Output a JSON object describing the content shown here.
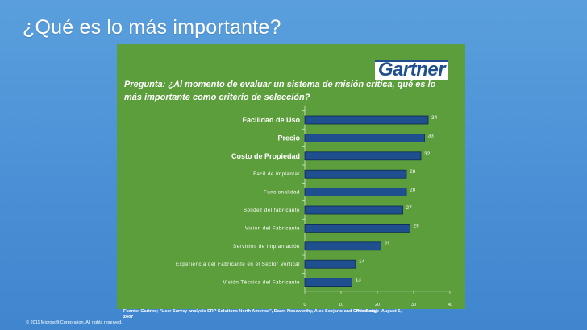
{
  "slide": {
    "title": "¿Qué es lo más importante?",
    "logo_text": "Gartner",
    "question": "Pregunta: ¿Al momento de evaluar un sistema de misión crítica,  qué es lo más importante como criterio de selección?",
    "source": "Fuente: Gartner; \"User Survey analysis ERP Solutions North America\", Dawn Noseworthy, Alex Soejarto and Chris Pang – August 6, 2007",
    "footer": "© 2011 Microsoft Corporation. All rights reserved."
  },
  "colors": {
    "background": "#4a90d6",
    "panel": "#5c9d3c",
    "bar": "#1f4f8e",
    "bar_edge": "#0d2a52"
  },
  "chart_data": {
    "type": "bar",
    "orientation": "horizontal",
    "categories": [
      "Facilidad de Uso",
      "Precio",
      "Costo de Propiedad",
      "Facil de implantar",
      "Funcionalidad",
      "Solidez del fabricante",
      "Visión del Fabricante",
      "Servicios de Implantación",
      "Experiencia  del Fabricante en el Sector  Vertical",
      "Visión Técnica del Fabricante"
    ],
    "category_bold": [
      true,
      true,
      true,
      false,
      false,
      false,
      false,
      false,
      false,
      false
    ],
    "values": [
      34,
      33,
      32,
      28,
      28,
      27,
      29,
      21,
      14,
      13
    ],
    "data_labels": [
      "34",
      "33",
      "32",
      "28",
      "28",
      "27",
      "29",
      "21",
      "14",
      "13"
    ],
    "xlabel": "Porcentaje",
    "xlim": [
      0,
      40
    ],
    "xticks": [
      0,
      10,
      20,
      30,
      40
    ],
    "grid": false
  }
}
